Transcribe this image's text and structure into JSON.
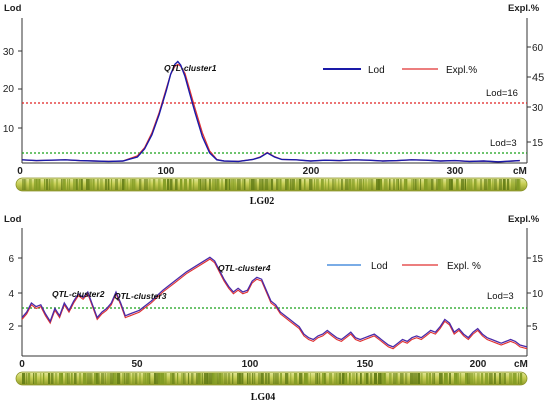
{
  "chart_data": [
    {
      "type": "line",
      "title": "",
      "linkage_group": "LG02",
      "ylabel_left": "Lod",
      "ylabel_right": "Expl.%",
      "xunit": "cM",
      "xlim": [
        0,
        350
      ],
      "ylim_left": [
        0,
        36
      ],
      "ylim_right": [
        0,
        72
      ],
      "xticks": [
        "0",
        "100",
        "200",
        "300"
      ],
      "yticks_left": [
        "10",
        "20",
        "30"
      ],
      "yticks_right": [
        "15",
        "30",
        "45",
        "60"
      ],
      "thresholds": [
        {
          "label": "Lod=16",
          "value": 16,
          "color": "#e02020"
        },
        {
          "label": "Lod=3",
          "value": 3,
          "color": "#18a018"
        }
      ],
      "annotations": [
        {
          "text": "QTL-cluster1",
          "x": 107,
          "y": 25
        }
      ],
      "legend": {
        "placement": "top-right"
      },
      "series": [
        {
          "name": "Lod",
          "color": "#1a1aa8",
          "axis": "left",
          "x": [
            0,
            10,
            20,
            30,
            40,
            50,
            60,
            70,
            80,
            85,
            90,
            95,
            100,
            103,
            106,
            108,
            110,
            113,
            116,
            120,
            125,
            130,
            135,
            140,
            150,
            160,
            165,
            170,
            175,
            180,
            190,
            200,
            210,
            220,
            230,
            240,
            250,
            260,
            270,
            280,
            290,
            300,
            310,
            320,
            330,
            340,
            345
          ],
          "y": [
            0.8,
            0.6,
            0.7,
            0.8,
            0.6,
            0.5,
            0.4,
            0.5,
            1.5,
            3.5,
            7,
            12,
            18,
            22,
            24.5,
            25.2,
            24.3,
            21.5,
            17.5,
            12.5,
            6.5,
            2.5,
            0.8,
            0.5,
            0.4,
            0.9,
            1.4,
            2.5,
            1.5,
            0.9,
            0.8,
            0.5,
            0.7,
            0.6,
            0.8,
            0.7,
            0.5,
            0.6,
            0.8,
            0.7,
            0.5,
            0.6,
            0.4,
            0.5,
            0.3,
            0.5,
            0.6
          ]
        },
        {
          "name": "Expl.%",
          "color": "#e03030",
          "axis": "right",
          "x": [
            0,
            10,
            20,
            30,
            40,
            50,
            60,
            70,
            80,
            85,
            90,
            95,
            100,
            103,
            106,
            108,
            110,
            113,
            116,
            120,
            125,
            130,
            135,
            140,
            150,
            160,
            165,
            170,
            175,
            180,
            190,
            200,
            210,
            220,
            230,
            240,
            250,
            260,
            270,
            280,
            290,
            300,
            310,
            320,
            330,
            340,
            345
          ],
          "y": [
            1.6,
            1.2,
            1.4,
            1.6,
            1.2,
            1,
            0.8,
            1,
            3.6,
            7.6,
            15,
            25,
            37,
            44,
            48,
            49,
            48,
            44.5,
            37,
            27,
            15,
            6,
            1.8,
            1,
            0.8,
            1.8,
            3,
            5.2,
            3.2,
            1.8,
            1.6,
            1,
            1.4,
            1.2,
            1.6,
            1.4,
            1,
            1.2,
            1.6,
            1.4,
            1,
            1.2,
            0.8,
            1,
            0.6,
            1,
            1.2
          ]
        }
      ]
    },
    {
      "type": "line",
      "title": "",
      "linkage_group": "LG04",
      "ylabel_left": "Lod",
      "ylabel_right": "Expl.%",
      "xunit": "cM",
      "xlim": [
        0,
        215
      ],
      "ylim_left": [
        0,
        7
      ],
      "ylim_right": [
        0,
        17.5
      ],
      "xticks": [
        "0",
        "50",
        "100",
        "150",
        "200"
      ],
      "yticks_left": [
        "2",
        "4",
        "6"
      ],
      "yticks_right": [
        "5",
        "10",
        "15"
      ],
      "thresholds": [
        {
          "label": "Lod=3",
          "value": 3,
          "color": "#18a018"
        }
      ],
      "annotations": [
        {
          "text": "QTL-cluster2",
          "x": 27,
          "y": 3.6
        },
        {
          "text": "QTL-cluster3",
          "x": 38,
          "y": 3.4
        },
        {
          "text": "QTL-cluster4",
          "x": 82,
          "y": 5.5
        }
      ],
      "legend": {
        "placement": "top-right"
      },
      "series": [
        {
          "name": "Lod",
          "color": "#2a7ad8",
          "axis": "left",
          "x": [
            0,
            2,
            4,
            6,
            8,
            10,
            12,
            14,
            16,
            18,
            20,
            22,
            24,
            26,
            28,
            30,
            32,
            34,
            36,
            38,
            40,
            42,
            44,
            46,
            50,
            55,
            60,
            65,
            70,
            75,
            80,
            82,
            84,
            86,
            88,
            90,
            92,
            94,
            96,
            98,
            100,
            102,
            104,
            106,
            108,
            110,
            112,
            114,
            116,
            118,
            120,
            122,
            124,
            126,
            128,
            130,
            132,
            134,
            136,
            138,
            140,
            142,
            144,
            146,
            148,
            150,
            152,
            154,
            156,
            158,
            160,
            162,
            164,
            166,
            168,
            170,
            172,
            174,
            176,
            178,
            180,
            182,
            184,
            186,
            188,
            190,
            192,
            194,
            196,
            198,
            200,
            202,
            204,
            206,
            208,
            210,
            212,
            215
          ],
          "y": [
            2.1,
            2.4,
            2.9,
            2.7,
            2.8,
            2.3,
            1.9,
            2.6,
            2.2,
            2.9,
            2.5,
            3.0,
            3.4,
            3.2,
            3.5,
            2.8,
            2.1,
            2.4,
            2.6,
            2.9,
            3.5,
            2.9,
            2.2,
            2.3,
            2.5,
            3.0,
            3.6,
            4.1,
            4.6,
            5.0,
            5.4,
            5.2,
            4.7,
            4.2,
            3.8,
            3.5,
            3.7,
            3.5,
            3.6,
            4.1,
            4.3,
            4.2,
            3.6,
            3.0,
            2.8,
            2.4,
            2.2,
            2.0,
            1.8,
            1.6,
            1.2,
            1.0,
            0.9,
            1.1,
            1.2,
            1.4,
            1.2,
            1.0,
            0.9,
            1.1,
            1.3,
            1.0,
            0.9,
            1.0,
            1.1,
            1.2,
            1.0,
            0.8,
            0.6,
            0.5,
            0.7,
            0.9,
            0.8,
            1.0,
            1.1,
            1.0,
            1.2,
            1.4,
            1.3,
            1.6,
            2.0,
            1.8,
            1.3,
            1.5,
            1.2,
            1.0,
            1.3,
            1.5,
            1.2,
            1.0,
            0.9,
            0.8,
            0.7,
            0.8,
            0.9,
            0.8,
            0.6,
            0.5
          ]
        },
        {
          "name": "Expl. %",
          "color": "#e03030",
          "axis": "left",
          "x": [
            0,
            2,
            4,
            6,
            8,
            10,
            12,
            14,
            16,
            18,
            20,
            22,
            24,
            26,
            28,
            30,
            32,
            34,
            36,
            38,
            40,
            42,
            44,
            46,
            50,
            55,
            60,
            65,
            70,
            75,
            80,
            82,
            84,
            86,
            88,
            90,
            92,
            94,
            96,
            98,
            100,
            102,
            104,
            106,
            108,
            110,
            112,
            114,
            116,
            118,
            120,
            122,
            124,
            126,
            128,
            130,
            132,
            134,
            136,
            138,
            140,
            142,
            144,
            146,
            148,
            150,
            152,
            154,
            156,
            158,
            160,
            162,
            164,
            166,
            168,
            170,
            172,
            174,
            176,
            178,
            180,
            182,
            184,
            186,
            188,
            190,
            192,
            194,
            196,
            198,
            200,
            202,
            204,
            206,
            208,
            210,
            212,
            215
          ],
          "y": [
            2.0,
            2.3,
            2.8,
            2.6,
            2.7,
            2.2,
            1.8,
            2.5,
            2.1,
            2.8,
            2.4,
            2.9,
            3.3,
            3.1,
            3.4,
            2.7,
            2.0,
            2.3,
            2.5,
            2.8,
            3.4,
            2.8,
            2.1,
            2.2,
            2.4,
            2.9,
            3.5,
            4.0,
            4.5,
            4.9,
            5.3,
            5.1,
            4.6,
            4.1,
            3.7,
            3.4,
            3.6,
            3.4,
            3.5,
            4.0,
            4.2,
            4.1,
            3.5,
            2.9,
            2.7,
            2.3,
            2.1,
            1.9,
            1.7,
            1.5,
            1.1,
            0.9,
            0.8,
            1.0,
            1.1,
            1.3,
            1.1,
            0.9,
            0.8,
            1.0,
            1.2,
            0.9,
            0.8,
            0.9,
            1.0,
            1.1,
            0.9,
            0.7,
            0.5,
            0.4,
            0.6,
            0.8,
            0.7,
            0.9,
            1.0,
            0.9,
            1.1,
            1.3,
            1.2,
            1.5,
            1.9,
            1.7,
            1.2,
            1.4,
            1.1,
            0.9,
            1.2,
            1.4,
            1.1,
            0.9,
            0.8,
            0.7,
            0.6,
            0.7,
            0.8,
            0.7,
            0.5,
            0.4
          ]
        }
      ]
    }
  ]
}
